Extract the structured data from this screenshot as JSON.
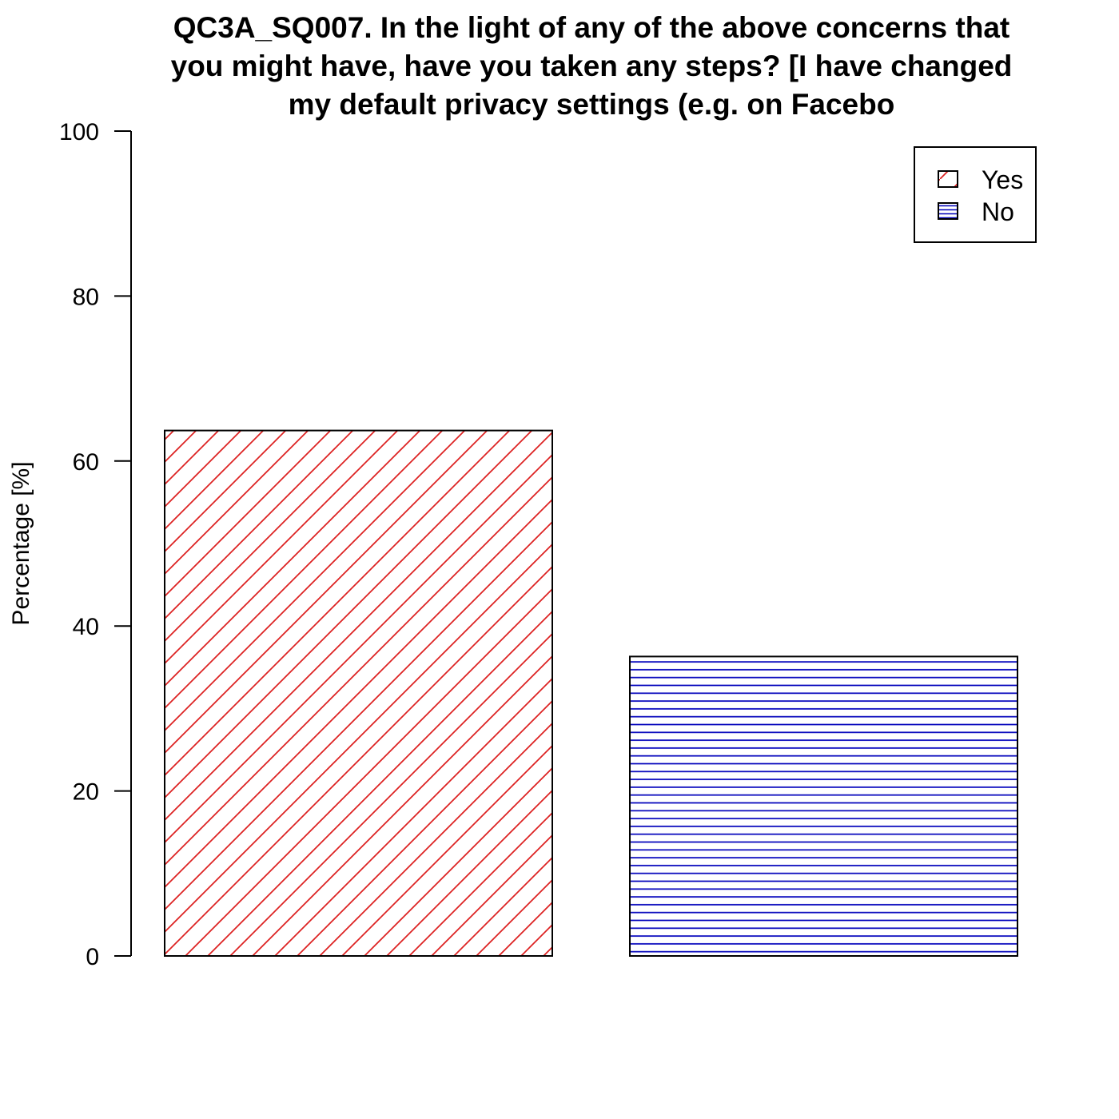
{
  "chart_data": {
    "type": "bar",
    "title_lines": [
      "QC3A_SQ007. In the light of any of the above concerns that",
      "you might have, have you taken any steps? [I have changed",
      "my default privacy settings (e.g. on Facebo"
    ],
    "xlabel": "",
    "ylabel": "Percentage [%]",
    "ylim": [
      0,
      100
    ],
    "yticks": [
      0,
      20,
      40,
      60,
      80,
      100
    ],
    "categories": [
      "Yes",
      "No"
    ],
    "values": [
      63.7,
      36.3
    ],
    "colors": [
      "#dd2222",
      "#0000bb"
    ],
    "patterns": [
      "diagonal",
      "horizontal"
    ],
    "grid": false,
    "legend": {
      "position": "top-right",
      "entries": [
        "Yes",
        "No"
      ]
    }
  }
}
